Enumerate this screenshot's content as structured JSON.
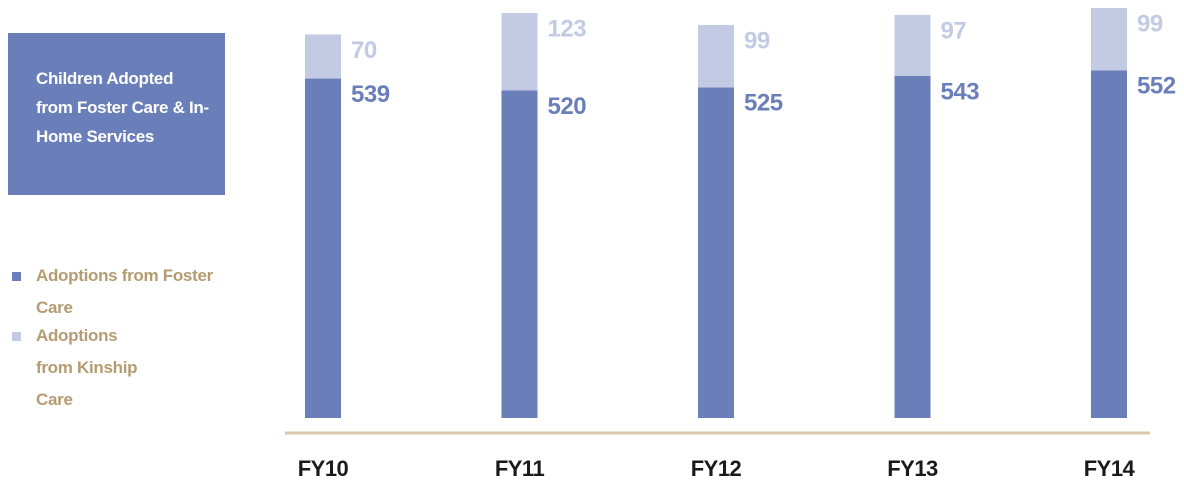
{
  "chart_data": {
    "type": "stacked_bar",
    "title": "Children Adopted from Foster Care & In-Home Services",
    "categories": [
      "FY10",
      "FY11",
      "FY12",
      "FY13",
      "FY14"
    ],
    "series": [
      {
        "name": "Adoptions from Foster Care",
        "color": "#6a7fb9",
        "values": [
          539,
          520,
          525,
          543,
          552
        ]
      },
      {
        "name": "Adoptions from Kinship Care",
        "color": "#c3cae4",
        "values": [
          70,
          123,
          99,
          97,
          99
        ]
      }
    ]
  }
}
